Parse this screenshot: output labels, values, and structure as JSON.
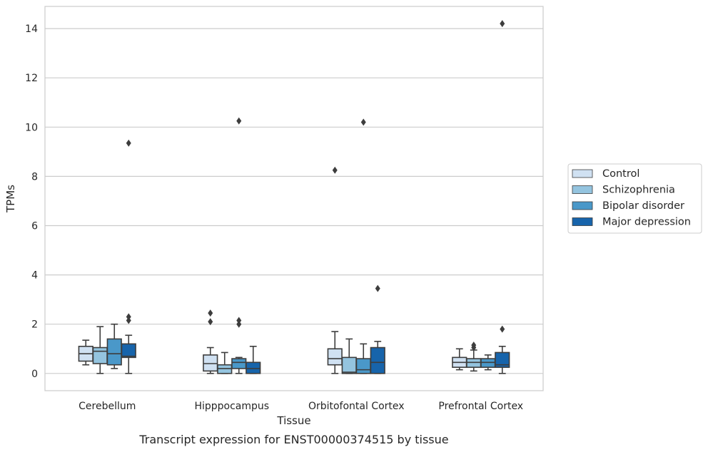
{
  "chart_data": {
    "type": "boxplot",
    "title": "",
    "caption": "Transcript expression for ENST00000374515 by tissue",
    "xlabel": "Tissue",
    "ylabel": "TPMs",
    "ylim": [
      -0.7,
      14.9
    ],
    "yticks": [
      0,
      2,
      4,
      6,
      8,
      10,
      12,
      14
    ],
    "grid": true,
    "legend_position": "right",
    "categories": [
      "Cerebellum",
      "Hipppocampus",
      "Orbitofontal Cortex",
      "Prefrontal Cortex"
    ],
    "series": [
      {
        "name": "Control",
        "color": "#d0e1f2",
        "boxes": [
          {
            "whislo": 0.35,
            "q1": 0.5,
            "med": 0.8,
            "q3": 1.1,
            "whishi": 1.35,
            "fliers": []
          },
          {
            "whislo": 0.0,
            "q1": 0.1,
            "med": 0.4,
            "q3": 0.75,
            "whishi": 1.05,
            "fliers": [
              2.1,
              2.45
            ]
          },
          {
            "whislo": 0.0,
            "q1": 0.35,
            "med": 0.6,
            "q3": 1.0,
            "whishi": 1.7,
            "fliers": [
              8.25
            ]
          },
          {
            "whislo": 0.15,
            "q1": 0.25,
            "med": 0.45,
            "q3": 0.65,
            "whishi": 1.0,
            "fliers": []
          }
        ]
      },
      {
        "name": "Schizophrenia",
        "color": "#94c4df",
        "boxes": [
          {
            "whislo": 0.0,
            "q1": 0.4,
            "med": 0.9,
            "q3": 1.05,
            "whishi": 1.9,
            "fliers": []
          },
          {
            "whislo": 0.0,
            "q1": 0.0,
            "med": 0.2,
            "q3": 0.35,
            "whishi": 0.85,
            "fliers": []
          },
          {
            "whislo": 0.0,
            "q1": 0.0,
            "med": 0.05,
            "q3": 0.65,
            "whishi": 1.4,
            "fliers": []
          },
          {
            "whislo": 0.1,
            "q1": 0.25,
            "med": 0.45,
            "q3": 0.6,
            "whishi": 0.95,
            "fliers": [
              1.05,
              1.15
            ]
          }
        ]
      },
      {
        "name": "Bipolar disorder",
        "color": "#4a98c9",
        "boxes": [
          {
            "whislo": 0.2,
            "q1": 0.35,
            "med": 0.8,
            "q3": 1.4,
            "whishi": 2.0,
            "fliers": []
          },
          {
            "whislo": 0.0,
            "q1": 0.2,
            "med": 0.45,
            "q3": 0.6,
            "whishi": 0.65,
            "fliers": [
              2.0,
              2.15,
              10.25
            ]
          },
          {
            "whislo": 0.0,
            "q1": 0.0,
            "med": 0.15,
            "q3": 0.6,
            "whishi": 1.2,
            "fliers": [
              10.2
            ]
          },
          {
            "whislo": 0.15,
            "q1": 0.25,
            "med": 0.45,
            "q3": 0.6,
            "whishi": 0.75,
            "fliers": []
          }
        ]
      },
      {
        "name": "Major depression",
        "color": "#1764ab",
        "boxes": [
          {
            "whislo": 0.0,
            "q1": 0.65,
            "med": 0.7,
            "q3": 1.2,
            "whishi": 1.55,
            "fliers": [
              2.15,
              2.3,
              9.35
            ]
          },
          {
            "whislo": 0.0,
            "q1": 0.0,
            "med": 0.2,
            "q3": 0.45,
            "whishi": 1.1,
            "fliers": []
          },
          {
            "whislo": 0.0,
            "q1": 0.0,
            "med": 0.45,
            "q3": 1.05,
            "whishi": 1.3,
            "fliers": [
              3.45
            ]
          },
          {
            "whislo": 0.0,
            "q1": 0.25,
            "med": 0.35,
            "q3": 0.85,
            "whishi": 1.1,
            "fliers": [
              1.8,
              14.2
            ]
          }
        ]
      }
    ]
  }
}
